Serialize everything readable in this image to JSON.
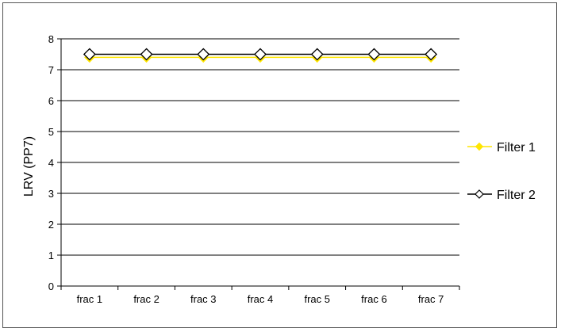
{
  "chart_data": {
    "type": "line",
    "title": "",
    "xlabel": "",
    "ylabel": "LRV (PP7)",
    "categories": [
      "frac 1",
      "frac 2",
      "frac 3",
      "frac 4",
      "frac 5",
      "frac 6",
      "frac 7"
    ],
    "ylim": [
      0,
      8
    ],
    "yticks": [
      "0",
      "1",
      "2",
      "3",
      "4",
      "5",
      "6",
      "7",
      "8"
    ],
    "grid": true,
    "legend_position": "right",
    "series": [
      {
        "name": "Filter 1",
        "values": [
          7.4,
          7.4,
          7.4,
          7.4,
          7.4,
          7.4,
          7.4
        ],
        "color": "#FFE600",
        "marker": "filled-diamond"
      },
      {
        "name": "Filter 2",
        "values": [
          7.5,
          7.5,
          7.5,
          7.5,
          7.5,
          7.5,
          7.5
        ],
        "color": "#000000",
        "marker": "hollow-diamond"
      }
    ]
  }
}
